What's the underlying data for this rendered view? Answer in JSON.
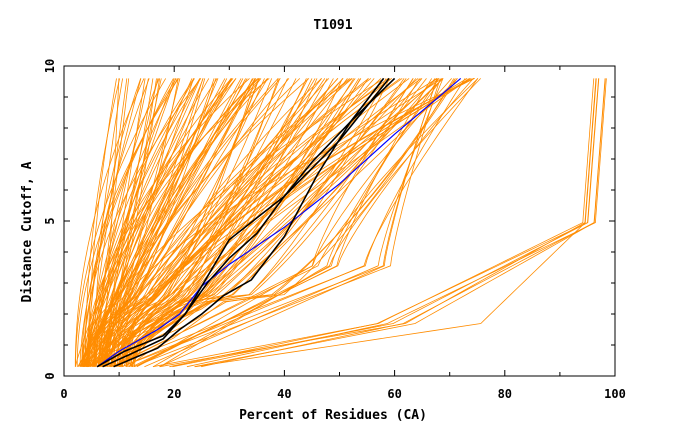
{
  "chart_data": {
    "type": "line",
    "title": "T1091",
    "xlabel": "Percent of Residues (CA)",
    "ylabel": "Distance Cutoff, A",
    "xlim": [
      0,
      100
    ],
    "ylim": [
      0,
      10
    ],
    "x_ticks": [
      0,
      20,
      40,
      60,
      80,
      100
    ],
    "x_tick_labels": [
      "0",
      "20",
      "40",
      "60",
      "80",
      "100"
    ],
    "y_ticks": [
      0,
      5,
      10
    ],
    "y_tick_labels": [
      "0",
      "5",
      "10"
    ],
    "grid": false,
    "legend": "none",
    "colors": {
      "background_models": "#ff8c00",
      "highlight_black": "#000000",
      "highlight_blue": "#0000ff"
    },
    "series": [
      {
        "color": "#0000ff",
        "x": [
          6,
          10,
          17,
          21,
          25,
          30,
          40,
          50,
          60,
          72
        ],
        "y": [
          0.3,
          0.8,
          1.5,
          2.0,
          2.9,
          3.6,
          4.8,
          6.2,
          7.8,
          9.6
        ]
      },
      {
        "color": "#000000",
        "x": [
          6,
          11,
          18,
          22,
          26,
          30,
          40,
          50,
          59
        ],
        "y": [
          0.3,
          0.8,
          1.3,
          2.0,
          3.2,
          4.4,
          5.8,
          7.6,
          9.6
        ]
      },
      {
        "color": "#000000",
        "x": [
          9,
          13,
          17,
          21,
          25,
          29,
          34,
          40,
          46,
          52,
          60
        ],
        "y": [
          0.3,
          0.6,
          0.9,
          1.5,
          2.0,
          2.6,
          3.1,
          4.5,
          6.5,
          8.2,
          9.6
        ]
      },
      {
        "color": "#000000",
        "x": [
          7,
          12,
          18,
          22,
          26,
          30,
          35,
          40,
          45,
          52,
          58
        ],
        "y": [
          0.3,
          0.7,
          1.2,
          2.0,
          3.0,
          3.8,
          4.6,
          5.8,
          6.9,
          8.2,
          9.6
        ]
      }
    ]
  }
}
